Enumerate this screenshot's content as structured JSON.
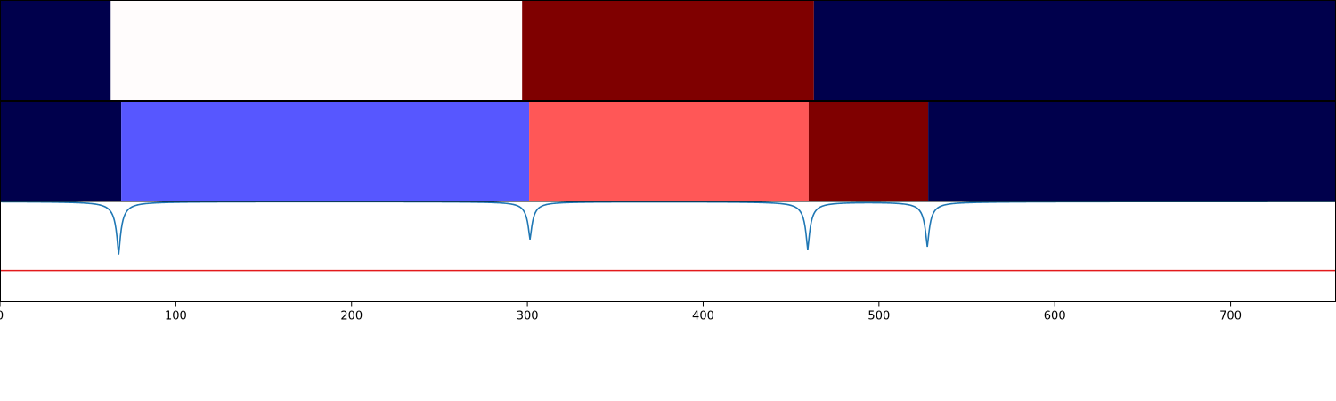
{
  "chart_data": {
    "type": "segmentation-strips",
    "x_range": [
      0,
      760
    ],
    "x_ticks": [
      0,
      100,
      200,
      300,
      400,
      500,
      600,
      700
    ],
    "x_tick_labels": [
      "0",
      "100",
      "200",
      "300",
      "400",
      "500",
      "600",
      "700"
    ],
    "grid": false,
    "strips": [
      {
        "segments": [
          {
            "start": 0,
            "end": 63,
            "color": "#00004c"
          },
          {
            "start": 63,
            "end": 297,
            "color": "#fffcfc"
          },
          {
            "start": 297,
            "end": 463,
            "color": "#7f0000"
          },
          {
            "start": 463,
            "end": 760,
            "color": "#00004c"
          }
        ]
      },
      {
        "segments": [
          {
            "start": 0,
            "end": 69,
            "color": "#00004c"
          },
          {
            "start": 69,
            "end": 301,
            "color": "#5757ff"
          },
          {
            "start": 301,
            "end": 460,
            "color": "#ff5757"
          },
          {
            "start": 460,
            "end": 528,
            "color": "#7f0000"
          },
          {
            "start": 528,
            "end": 760,
            "color": "#00004c"
          }
        ]
      }
    ],
    "boundary_curve": {
      "color": "#1f77b4",
      "baseline": 1.0,
      "ylim": [
        0,
        1.0
      ],
      "dips": [
        {
          "x": 67.5,
          "min": 0.47
        },
        {
          "x": 301.5,
          "min": 0.62
        },
        {
          "x": 459.5,
          "min": 0.52
        },
        {
          "x": 527.5,
          "min": 0.55
        }
      ]
    },
    "threshold": {
      "value": 0.31,
      "color": "#e31a1c"
    }
  }
}
